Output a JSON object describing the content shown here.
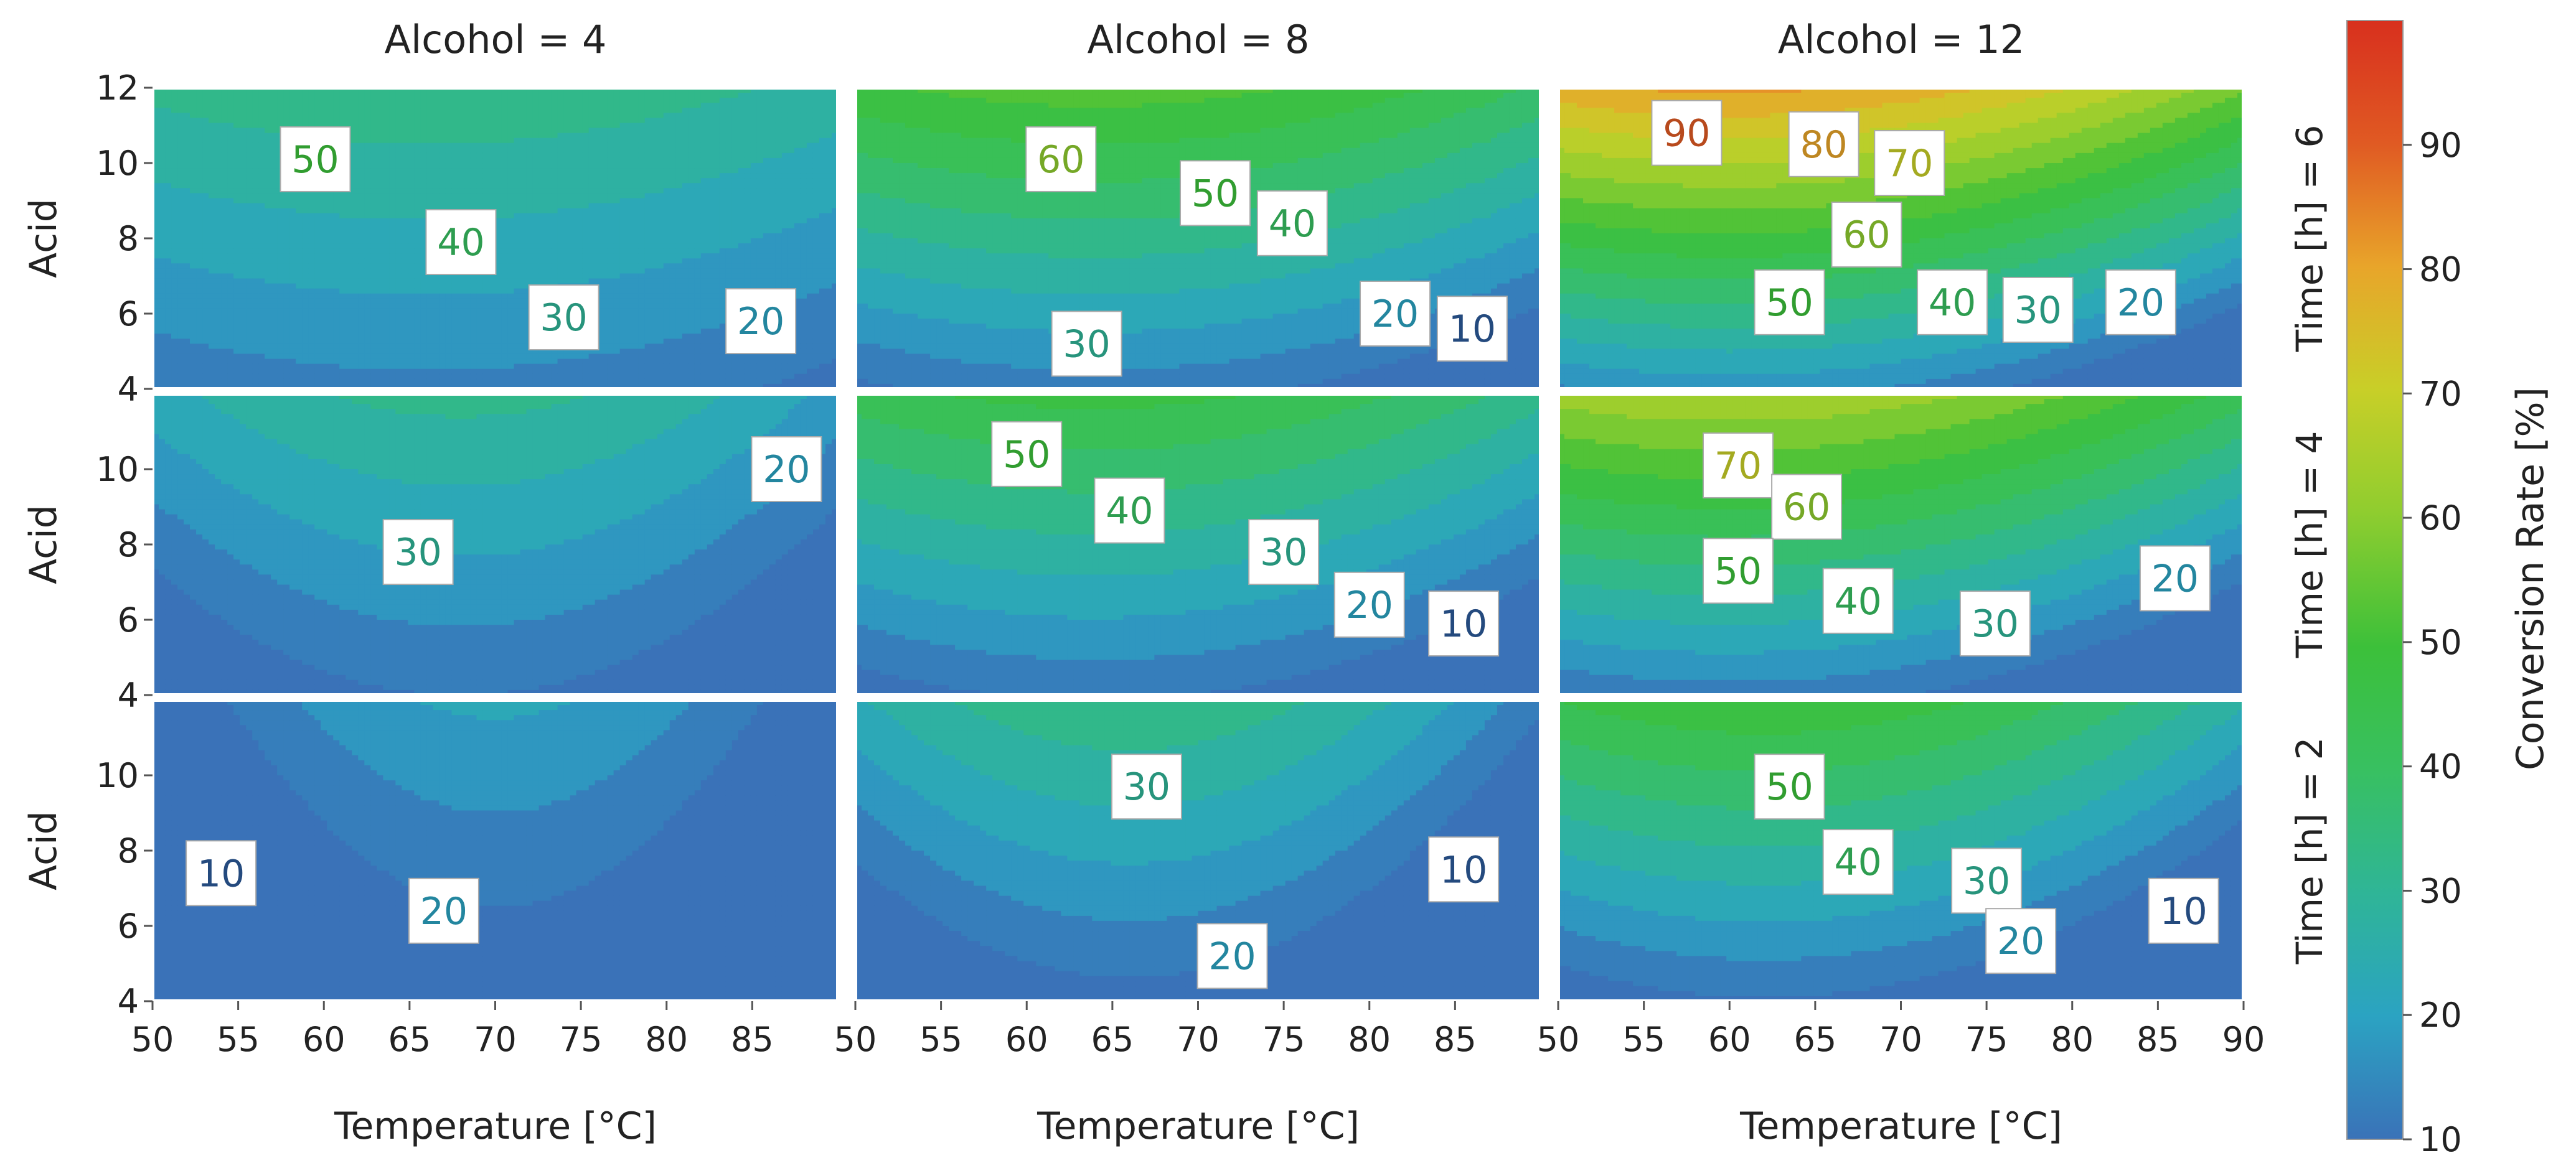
{
  "chart_data": {
    "type": "contour",
    "col_titles": [
      "Alcohol = 4",
      "Alcohol = 8",
      "Alcohol = 12"
    ],
    "row_titles": [
      "Time [h] = 6",
      "Time [h] = 4",
      "Time [h] = 2"
    ],
    "xlabel": "Temperature [°C]",
    "ylabel": "Acid",
    "colorbar_label": "Conversion Rate [%]",
    "xlim": [
      50,
      90
    ],
    "ylim": [
      4,
      12
    ],
    "x_ticks": [
      "50",
      "55",
      "60",
      "65",
      "70",
      "75",
      "80",
      "85"
    ],
    "x_ticks_last": [
      "50",
      "55",
      "60",
      "65",
      "70",
      "75",
      "80",
      "85",
      "90"
    ],
    "y_ticks_top": [
      "4",
      "6",
      "8",
      "10",
      "12"
    ],
    "y_ticks": [
      "4",
      "6",
      "8",
      "10"
    ],
    "colorbar_ticks": [
      "10",
      "20",
      "30",
      "40",
      "50",
      "60",
      "70",
      "80",
      "90"
    ],
    "colorbar_range": [
      10,
      100
    ],
    "contour_step": 5,
    "colors": {
      "low": "#3a72b8",
      "c20": "#2ba3c2",
      "c30": "#2fb597",
      "c40": "#38c061",
      "c50": "#3cc03a",
      "c60": "#8fcd2f",
      "c70": "#c8cf28",
      "c80": "#e8a52a",
      "c90": "#e05a23",
      "high": "#d8301e"
    },
    "panels": [
      {
        "alcohol": 4,
        "time": 6,
        "model": {
          "b": 10,
          "a": 2.5,
          "t0": 66,
          "q": 0.01
        },
        "labels": [
          {
            "text": "50",
            "x": 59.5,
            "y": 10.1
          },
          {
            "text": "40",
            "x": 68,
            "y": 7.9
          },
          {
            "text": "30",
            "x": 74,
            "y": 5.9
          },
          {
            "text": "20",
            "x": 85.5,
            "y": 5.8
          }
        ]
      },
      {
        "alcohol": 8,
        "time": 6,
        "model": {
          "b": 5,
          "a": 5.0,
          "t0": 64,
          "q": 0.02
        },
        "labels": [
          {
            "text": "60",
            "x": 62,
            "y": 10.1
          },
          {
            "text": "50",
            "x": 71,
            "y": 9.2
          },
          {
            "text": "40",
            "x": 75.5,
            "y": 8.4
          },
          {
            "text": "30",
            "x": 63.5,
            "y": 5.2
          },
          {
            "text": "20",
            "x": 81.5,
            "y": 6.0
          },
          {
            "text": "10",
            "x": 86,
            "y": 5.6
          }
        ]
      },
      {
        "alcohol": 12,
        "time": 6,
        "model": {
          "b": 5,
          "a": 8.0,
          "t0": 60,
          "q": 0.028
        },
        "labels": [
          {
            "text": "90",
            "x": 57.5,
            "y": 10.8
          },
          {
            "text": "80",
            "x": 65.5,
            "y": 10.5
          },
          {
            "text": "70",
            "x": 70.5,
            "y": 10.0
          },
          {
            "text": "60",
            "x": 68,
            "y": 8.1
          },
          {
            "text": "50",
            "x": 63.5,
            "y": 6.3
          },
          {
            "text": "40",
            "x": 73,
            "y": 6.3
          },
          {
            "text": "30",
            "x": 78,
            "y": 6.1
          },
          {
            "text": "20",
            "x": 84,
            "y": 6.3
          }
        ]
      },
      {
        "alcohol": 4,
        "time": 4,
        "model": {
          "b": 6,
          "a": 2.7,
          "t0": 68,
          "q": 0.028
        },
        "labels": [
          {
            "text": "30",
            "x": 65.5,
            "y": 7.8
          },
          {
            "text": "20",
            "x": 87,
            "y": 10.0
          }
        ]
      },
      {
        "alcohol": 8,
        "time": 4,
        "model": {
          "b": 4,
          "a": 4.5,
          "t0": 64,
          "q": 0.022
        },
        "labels": [
          {
            "text": "50",
            "x": 60,
            "y": 10.4
          },
          {
            "text": "40",
            "x": 66,
            "y": 8.9
          },
          {
            "text": "30",
            "x": 75,
            "y": 7.8
          },
          {
            "text": "20",
            "x": 80,
            "y": 6.4
          },
          {
            "text": "10",
            "x": 85.5,
            "y": 5.9
          }
        ]
      },
      {
        "alcohol": 12,
        "time": 4,
        "model": {
          "b": 3,
          "a": 6.5,
          "t0": 60,
          "q": 0.025
        },
        "labels": [
          {
            "text": "70",
            "x": 60.5,
            "y": 10.1
          },
          {
            "text": "60",
            "x": 64.5,
            "y": 9.0
          },
          {
            "text": "50",
            "x": 60.5,
            "y": 7.3
          },
          {
            "text": "40",
            "x": 67.5,
            "y": 6.5
          },
          {
            "text": "30",
            "x": 75.5,
            "y": 5.9
          },
          {
            "text": "20",
            "x": 86,
            "y": 7.1
          }
        ]
      },
      {
        "alcohol": 4,
        "time": 2,
        "model": {
          "b": 2,
          "a": 2.0,
          "t0": 70,
          "q": 0.045
        },
        "labels": [
          {
            "text": "10",
            "x": 54,
            "y": 7.4
          },
          {
            "text": "20",
            "x": 67,
            "y": 6.4
          }
        ]
      },
      {
        "alcohol": 8,
        "time": 2,
        "model": {
          "b": 3,
          "a": 3.3,
          "t0": 66,
          "q": 0.04
        },
        "labels": [
          {
            "text": "30",
            "x": 67,
            "y": 9.7
          },
          {
            "text": "20",
            "x": 72,
            "y": 5.2
          },
          {
            "text": "10",
            "x": 85.5,
            "y": 7.5
          }
        ]
      },
      {
        "alcohol": 12,
        "time": 2,
        "model": {
          "b": 2,
          "a": 5.0,
          "t0": 62,
          "q": 0.03
        },
        "labels": [
          {
            "text": "50",
            "x": 63.5,
            "y": 9.7
          },
          {
            "text": "40",
            "x": 67.5,
            "y": 7.7
          },
          {
            "text": "30",
            "x": 75,
            "y": 7.2
          },
          {
            "text": "20",
            "x": 77,
            "y": 5.6
          },
          {
            "text": "10",
            "x": 86.5,
            "y": 6.4
          }
        ]
      }
    ]
  }
}
